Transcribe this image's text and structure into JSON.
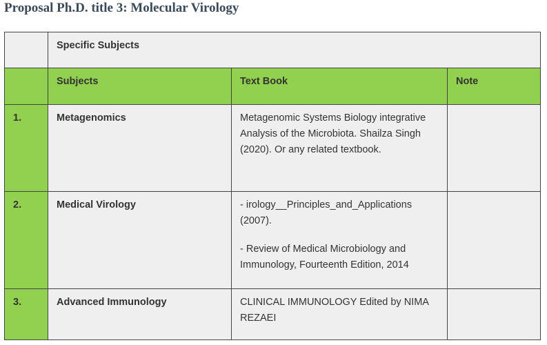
{
  "title": "Proposal Ph.D. title 3: Molecular Virology",
  "table": {
    "caption": "Specific Subjects",
    "columns": [
      "Subjects",
      "Text Book",
      "Note"
    ],
    "rows": [
      {
        "number": "1.",
        "subject": "Metagenomics",
        "text_book": [
          "Metagenomic Systems Biology  integrative Analysis of the  Microbiota. Shailza Singh (2020). Or  any related textbook."
        ]
      },
      {
        "number": "2.",
        "subject": "Medical Virology",
        "text_book": [
          "- irology__Principles_and_Applications (2007).",
          "- Review of Medical Microbiology  and Immunology, Fourteenth  Edition, 2014"
        ]
      },
      {
        "number": "3.",
        "subject": "Advanced Immunology",
        "text_book": [
          "CLINICAL IMMUNOLOGY Edited  by NIMA REZAEI"
        ]
      }
    ]
  }
}
